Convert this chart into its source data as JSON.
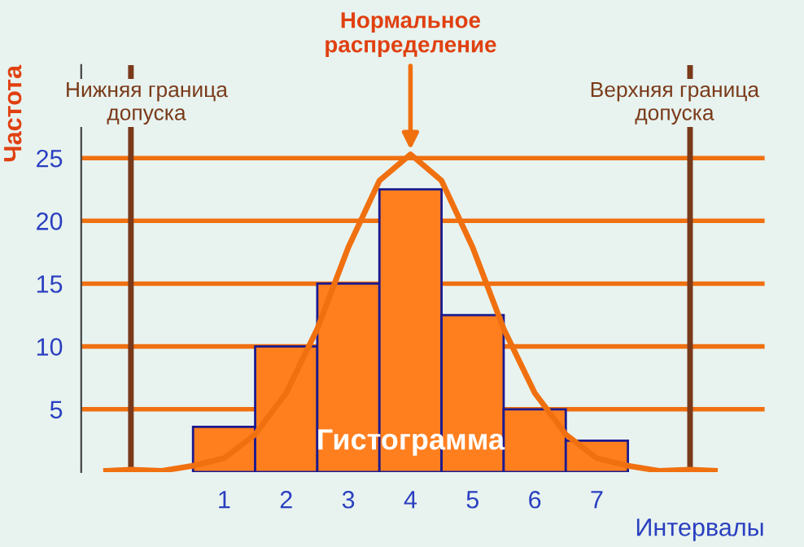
{
  "chart_data": {
    "type": "histogram",
    "xlabel": "Интервалы",
    "ylabel": "Частота",
    "bins": [
      0.5,
      1.5,
      2.5,
      3.5,
      4.5,
      5.5,
      6.5,
      7.5
    ],
    "values": [
      3.6,
      10,
      15,
      22.5,
      12.5,
      5,
      2.5
    ],
    "color": "#ff7f1f",
    "series": [
      {
        "type": "line",
        "color": "#f07010",
        "x": [
          -0.9,
          -0.5,
          0,
          0.5,
          1,
          1.5,
          2,
          2.5,
          3,
          3.5,
          4,
          4.5,
          5,
          5.5,
          6,
          6.5,
          7,
          7.5,
          8,
          8.5,
          8.9
        ],
        "values": [
          0.1,
          0.2,
          0.1,
          0.5,
          1.1,
          3.0,
          6.3,
          11.4,
          17.9,
          23.2,
          25.3,
          23.2,
          17.9,
          11.4,
          6.3,
          3.0,
          1.1,
          0.5,
          0.1,
          0.2,
          0.1
        ]
      }
    ],
    "xlim": [
      -1.3,
      9.7
    ],
    "xticks": [
      1,
      2,
      3,
      4,
      5,
      6,
      7
    ],
    "ylim": [
      0,
      32.4
    ],
    "yticks": [
      5,
      10,
      15,
      20,
      25
    ],
    "grid": "y",
    "ref_lines": [
      {
        "axis": "x",
        "value": -0.5,
        "label": "Нижняя граница\nдопуска",
        "color": "#7a3a1a"
      },
      {
        "axis": "x",
        "value": 8.5,
        "label": "Верхняя граница\nдопуска",
        "color": "#7a3a1a"
      }
    ],
    "annotations": [
      {
        "text": "Нормальное\nраспределение",
        "x": 4,
        "y": 25.3
      },
      "Гистограмма"
    ]
  }
}
